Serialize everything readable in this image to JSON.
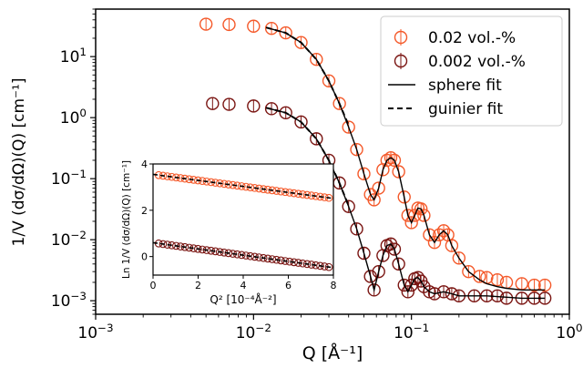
{
  "chart_data": [
    {
      "type": "scatter",
      "role": "main",
      "x_scale": "log",
      "y_scale": "log",
      "xlim": [
        0.001,
        1
      ],
      "ylim": [
        0.0006,
        60
      ],
      "xlabel": "Q [Å⁻¹]",
      "ylabel": "1/V (dσ/dΩ)(Q) [cm⁻¹]",
      "x_ticks": [
        {
          "value": 0.001,
          "base": "10",
          "exp": "−3"
        },
        {
          "value": 0.01,
          "base": "10",
          "exp": "−2"
        },
        {
          "value": 0.1,
          "base": "10",
          "exp": "−1"
        },
        {
          "value": 1,
          "base": "10",
          "exp": "0"
        }
      ],
      "y_ticks": [
        {
          "value": 0.001,
          "base": "10",
          "exp": "−3"
        },
        {
          "value": 0.01,
          "base": "10",
          "exp": "−2"
        },
        {
          "value": 0.1,
          "base": "10",
          "exp": "−1"
        },
        {
          "value": 1,
          "base": "10",
          "exp": "0"
        },
        {
          "value": 10,
          "base": "10",
          "exp": "1"
        }
      ],
      "legend": {
        "placement": "top-right",
        "entries": [
          {
            "label": "0.02   vol.-%",
            "kind": "marker",
            "series": 0
          },
          {
            "label": "0.002 vol.-%",
            "kind": "marker",
            "series": 1
          },
          {
            "label": "sphere fit",
            "kind": "solid-line"
          },
          {
            "label": "guinier fit",
            "kind": "dashed-line"
          }
        ]
      },
      "series": [
        {
          "name": "0.02   vol.-%",
          "color": "#f4592a",
          "points": [
            [
              0.005,
              34
            ],
            [
              0.007,
              33.5
            ],
            [
              0.01,
              31.5
            ],
            [
              0.013,
              29
            ],
            [
              0.016,
              24.5
            ],
            [
              0.02,
              17
            ],
            [
              0.025,
              9
            ],
            [
              0.03,
              4
            ],
            [
              0.035,
              1.7
            ],
            [
              0.04,
              0.7
            ],
            [
              0.045,
              0.3
            ],
            [
              0.05,
              0.12
            ],
            [
              0.055,
              0.055
            ],
            [
              0.058,
              0.045
            ],
            [
              0.062,
              0.07
            ],
            [
              0.066,
              0.14
            ],
            [
              0.07,
              0.2
            ],
            [
              0.074,
              0.22
            ],
            [
              0.078,
              0.2
            ],
            [
              0.083,
              0.13
            ],
            [
              0.09,
              0.05
            ],
            [
              0.095,
              0.025
            ],
            [
              0.1,
              0.019
            ],
            [
              0.105,
              0.025
            ],
            [
              0.11,
              0.033
            ],
            [
              0.115,
              0.032
            ],
            [
              0.12,
              0.025
            ],
            [
              0.13,
              0.012
            ],
            [
              0.14,
              0.009
            ],
            [
              0.15,
              0.012
            ],
            [
              0.16,
              0.014
            ],
            [
              0.17,
              0.012
            ],
            [
              0.18,
              0.008
            ],
            [
              0.2,
              0.005
            ],
            [
              0.23,
              0.003
            ],
            [
              0.27,
              0.0025
            ],
            [
              0.3,
              0.0024
            ],
            [
              0.35,
              0.0022
            ],
            [
              0.4,
              0.002
            ],
            [
              0.5,
              0.0019
            ],
            [
              0.6,
              0.0018
            ],
            [
              0.7,
              0.0018
            ]
          ]
        },
        {
          "name": "0.002 vol.-%",
          "color": "#7a1512",
          "points": [
            [
              0.0055,
              1.7
            ],
            [
              0.007,
              1.65
            ],
            [
              0.01,
              1.55
            ],
            [
              0.013,
              1.4
            ],
            [
              0.016,
              1.2
            ],
            [
              0.02,
              0.85
            ],
            [
              0.025,
              0.45
            ],
            [
              0.03,
              0.2
            ],
            [
              0.035,
              0.085
            ],
            [
              0.04,
              0.035
            ],
            [
              0.045,
              0.015
            ],
            [
              0.05,
              0.006
            ],
            [
              0.055,
              0.0025
            ],
            [
              0.058,
              0.0015
            ],
            [
              0.062,
              0.003
            ],
            [
              0.066,
              0.0055
            ],
            [
              0.07,
              0.008
            ],
            [
              0.074,
              0.0085
            ],
            [
              0.078,
              0.007
            ],
            [
              0.083,
              0.004
            ],
            [
              0.09,
              0.0018
            ],
            [
              0.095,
              0.0014
            ],
            [
              0.1,
              0.0018
            ],
            [
              0.105,
              0.0023
            ],
            [
              0.11,
              0.0024
            ],
            [
              0.115,
              0.0021
            ],
            [
              0.12,
              0.0017
            ],
            [
              0.13,
              0.0014
            ],
            [
              0.14,
              0.0013
            ],
            [
              0.16,
              0.0014
            ],
            [
              0.18,
              0.0013
            ],
            [
              0.2,
              0.0012
            ],
            [
              0.25,
              0.0012
            ],
            [
              0.3,
              0.0012
            ],
            [
              0.35,
              0.0012
            ],
            [
              0.4,
              0.0011
            ],
            [
              0.5,
              0.0011
            ],
            [
              0.6,
              0.0011
            ],
            [
              0.7,
              0.0011
            ]
          ]
        }
      ],
      "fits": [
        {
          "style": "solid",
          "series": 0,
          "points": [
            [
              0.012,
              30
            ],
            [
              0.016,
              24.5
            ],
            [
              0.02,
              17
            ],
            [
              0.025,
              9
            ],
            [
              0.03,
              4
            ],
            [
              0.035,
              1.7
            ],
            [
              0.04,
              0.7
            ],
            [
              0.045,
              0.3
            ],
            [
              0.05,
              0.12
            ],
            [
              0.055,
              0.055
            ],
            [
              0.058,
              0.045
            ],
            [
              0.062,
              0.07
            ],
            [
              0.066,
              0.14
            ],
            [
              0.07,
              0.2
            ],
            [
              0.074,
              0.22
            ],
            [
              0.078,
              0.2
            ],
            [
              0.083,
              0.13
            ],
            [
              0.09,
              0.05
            ],
            [
              0.095,
              0.025
            ],
            [
              0.1,
              0.019
            ],
            [
              0.105,
              0.025
            ],
            [
              0.11,
              0.033
            ],
            [
              0.115,
              0.032
            ],
            [
              0.12,
              0.025
            ],
            [
              0.13,
              0.012
            ],
            [
              0.14,
              0.009
            ],
            [
              0.15,
              0.012
            ],
            [
              0.16,
              0.014
            ],
            [
              0.17,
              0.012
            ],
            [
              0.18,
              0.008
            ],
            [
              0.2,
              0.005
            ],
            [
              0.23,
              0.003
            ],
            [
              0.27,
              0.0022
            ],
            [
              0.3,
              0.0019
            ],
            [
              0.35,
              0.0017
            ],
            [
              0.4,
              0.0016
            ],
            [
              0.5,
              0.0015
            ],
            [
              0.6,
              0.0015
            ],
            [
              0.7,
              0.0015
            ]
          ]
        },
        {
          "style": "solid",
          "series": 1,
          "points": [
            [
              0.012,
              1.45
            ],
            [
              0.016,
              1.2
            ],
            [
              0.02,
              0.85
            ],
            [
              0.025,
              0.45
            ],
            [
              0.03,
              0.2
            ],
            [
              0.035,
              0.085
            ],
            [
              0.04,
              0.035
            ],
            [
              0.045,
              0.015
            ],
            [
              0.05,
              0.006
            ],
            [
              0.055,
              0.0025
            ],
            [
              0.058,
              0.0015
            ],
            [
              0.062,
              0.003
            ],
            [
              0.066,
              0.0055
            ],
            [
              0.07,
              0.008
            ],
            [
              0.074,
              0.0085
            ],
            [
              0.078,
              0.007
            ],
            [
              0.083,
              0.004
            ],
            [
              0.09,
              0.0018
            ],
            [
              0.095,
              0.0014
            ],
            [
              0.1,
              0.0018
            ],
            [
              0.105,
              0.0023
            ],
            [
              0.11,
              0.0024
            ],
            [
              0.115,
              0.0021
            ],
            [
              0.12,
              0.0017
            ],
            [
              0.13,
              0.0014
            ],
            [
              0.14,
              0.0013
            ],
            [
              0.16,
              0.0014
            ],
            [
              0.18,
              0.0013
            ],
            [
              0.2,
              0.0012
            ],
            [
              0.3,
              0.0012
            ],
            [
              0.5,
              0.0011
            ],
            [
              0.7,
              0.0011
            ]
          ]
        },
        {
          "style": "dashed",
          "series": 0,
          "points": [
            [
              0.012,
              30
            ],
            [
              0.016,
              24.5
            ],
            [
              0.02,
              17
            ],
            [
              0.025,
              9
            ],
            [
              0.03,
              4
            ],
            [
              0.035,
              1.7
            ],
            [
              0.04,
              0.75
            ]
          ]
        },
        {
          "style": "dashed",
          "series": 1,
          "points": [
            [
              0.012,
              1.45
            ],
            [
              0.016,
              1.2
            ],
            [
              0.02,
              0.85
            ],
            [
              0.025,
              0.45
            ],
            [
              0.03,
              0.2
            ],
            [
              0.035,
              0.085
            ],
            [
              0.04,
              0.036
            ]
          ]
        }
      ]
    },
    {
      "type": "scatter",
      "role": "inset",
      "xlim": [
        0,
        8
      ],
      "ylim": [
        -0.8,
        4
      ],
      "xlabel": "Q² [10⁻⁴Å⁻²]",
      "ylabel": "Ln 1/V (dσ/dΩ)(Q) [cm⁻¹]",
      "x_ticks": [
        0,
        2,
        4,
        6,
        8
      ],
      "y_ticks": [
        0,
        2,
        4
      ],
      "series": [
        {
          "name": "0.02   vol.-%",
          "color": "#f4592a",
          "intercept": 3.55,
          "slope": -0.13,
          "x_start": 0.25,
          "x_end": 7.8,
          "n_points": 40
        },
        {
          "name": "0.002 vol.-%",
          "color": "#7a1512",
          "intercept": 0.6,
          "slope": -0.135,
          "x_start": 0.25,
          "x_end": 7.8,
          "n_points": 40
        }
      ],
      "fits": [
        {
          "style": "dashed",
          "intercept": 3.55,
          "slope": -0.13,
          "x_range": [
            0,
            8
          ]
        },
        {
          "style": "dashed",
          "intercept": 0.6,
          "slope": -0.135,
          "x_range": [
            0,
            8
          ]
        }
      ]
    }
  ]
}
